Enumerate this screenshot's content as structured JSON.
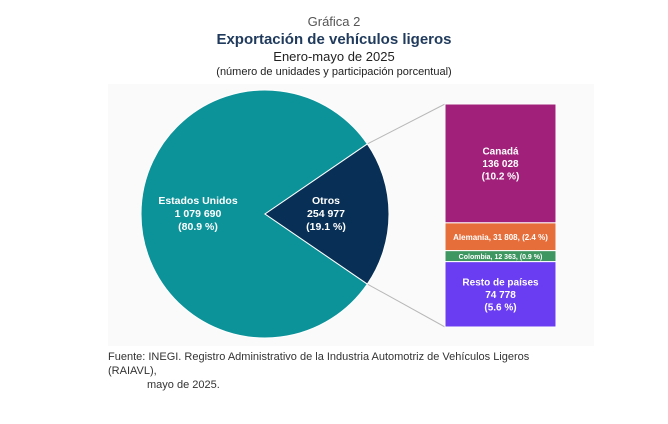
{
  "header": {
    "kicker": "Gráfica 2",
    "title": "Exportación de vehículos ligeros",
    "subtitle": "Enero-mayo de 2025",
    "note": "(número de unidades y participación porcentual)"
  },
  "chart_data": [
    {
      "type": "pie",
      "slices": [
        {
          "name": "Estados Unidos",
          "value_label": "1 079 690",
          "share_label": "(80.9 %)",
          "value": 1079690,
          "share": 80.9,
          "color": "#0c9299"
        },
        {
          "name": "Otros",
          "value_label": "254 977",
          "share_label": "(19.1 %)",
          "value": 254977,
          "share": 19.1,
          "color": "#082f55"
        }
      ]
    },
    {
      "type": "bar",
      "stacked": true,
      "segments": [
        {
          "name": "Canadá",
          "value_label": "136 028",
          "share_label": "(10.2 %)",
          "value": 136028,
          "share": 10.2,
          "color": "#a0207a"
        },
        {
          "name": "Alemania",
          "label": "Alemania, 31 808, (2.4 %)",
          "value": 31808,
          "share": 2.4,
          "color": "#e56e3b"
        },
        {
          "name": "Colombia",
          "label": "Colombia, 12 363, (0.9 %)",
          "value": 12363,
          "share": 0.9,
          "color": "#3e9660"
        },
        {
          "name": "Resto de países",
          "value_label": "74 778",
          "share_label": "(5.6 %)",
          "value": 74778,
          "share": 5.6,
          "color": "#6a3cf2"
        }
      ]
    }
  ],
  "source": {
    "line1": "Fuente: INEGI. Registro Administrativo de la Industria Automotriz de Vehículos Ligeros (RAIAVL),",
    "line2": "mayo de 2025."
  }
}
